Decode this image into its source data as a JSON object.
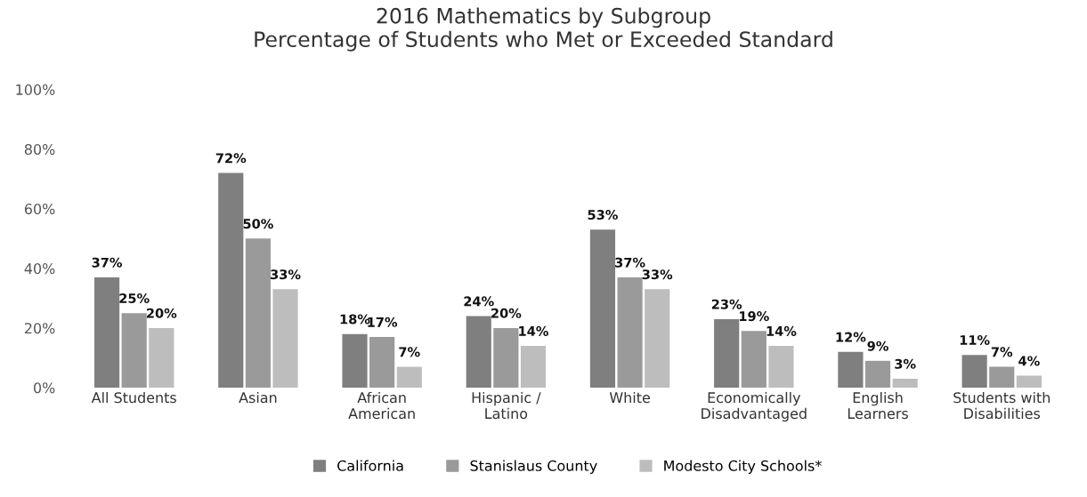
{
  "chart_data": {
    "type": "bar",
    "title": "2016 Mathematics by Subgroup\nPercentage of Students who Met or Exceeded Standard",
    "categories": [
      "All Students",
      "Asian",
      "African\nAmerican",
      "Hispanic /\nLatino",
      "White",
      "Economically\nDisadvantaged",
      "English\nLearners",
      "Students with\nDisabilities"
    ],
    "series": [
      {
        "name": "California",
        "color": "#7f7f7f",
        "values": [
          37,
          72,
          18,
          24,
          53,
          23,
          12,
          11
        ],
        "value_labels": [
          "37%",
          "72%",
          "18%",
          "24%",
          "53%",
          "23%",
          "12%",
          "11%"
        ]
      },
      {
        "name": "Stanislaus County",
        "color": "#9a9a9a",
        "values": [
          25,
          50,
          17,
          20,
          37,
          19,
          9,
          7
        ],
        "value_labels": [
          "25%",
          "50%",
          "17%",
          "20%",
          "37%",
          "19%",
          "9%",
          "7%"
        ]
      },
      {
        "name": "Modesto City Schools*",
        "color": "#bdbdbd",
        "values": [
          20,
          33,
          7,
          14,
          33,
          14,
          3,
          4
        ],
        "value_labels": [
          "20%",
          "33%",
          "7%",
          "14%",
          "33%",
          "14%",
          "3%",
          "4%"
        ]
      }
    ],
    "ylim": [
      0,
      100
    ],
    "yticks": [
      {
        "value": 0,
        "label": "0%"
      },
      {
        "value": 20,
        "label": "20%"
      },
      {
        "value": 40,
        "label": "40%"
      },
      {
        "value": 60,
        "label": "60%"
      },
      {
        "value": 80,
        "label": "80%"
      },
      {
        "value": 100,
        "label": "100%"
      }
    ],
    "grid": false,
    "legend": "bottom"
  }
}
